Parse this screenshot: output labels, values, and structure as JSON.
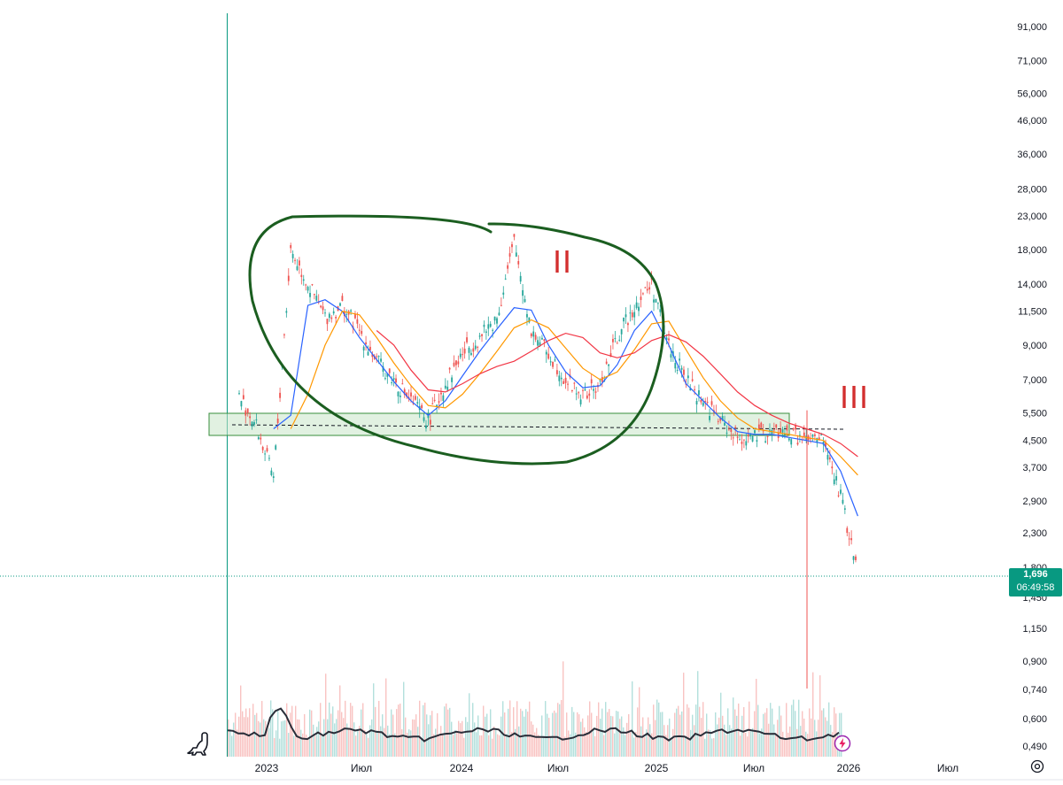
{
  "colors": {
    "up": "#26a69a",
    "down": "#ef5350",
    "ma_fast": "#2962ff",
    "ma_mid": "#ff9800",
    "ma_slow": "#f23645",
    "volume_avg": "#2a2e39",
    "zone_fill": "#c8e6c9",
    "zone_border": "#388e3c",
    "circle": "#1b5e20",
    "annotation": "#d32f2f",
    "badge": "#089981",
    "crosshair": "#089981"
  },
  "price_axis": {
    "labels": [
      "91,000",
      "71,000",
      "56,000",
      "46,000",
      "36,000",
      "28,000",
      "23,000",
      "18,000",
      "14,000",
      "11,500",
      "9,000",
      "7,000",
      "5,500",
      "4,500",
      "3,700",
      "2,900",
      "2,300",
      "1,800",
      "1,450",
      "1,150",
      "0,900",
      "0,740",
      "0,600",
      "0,490"
    ]
  },
  "time_axis": {
    "labels": [
      "2023",
      "Июл",
      "2024",
      "Июл",
      "2025",
      "Июл",
      "2026",
      "Июл"
    ]
  },
  "current_price": {
    "value": "1,696",
    "countdown": "06:49:58"
  },
  "annotations": {
    "wave_2": "II",
    "wave_3": "III"
  },
  "icons": {
    "logo": "dinosaur-logo-icon",
    "settings": "settings-icon",
    "flash": "flash-icon"
  },
  "chart_data": {
    "type": "line",
    "scale": "log",
    "x": [
      "2022-12",
      "2023-01",
      "2023-02",
      "2023-03",
      "2023-04",
      "2023-05",
      "2023-06",
      "2023-07",
      "2023-08",
      "2023-09",
      "2023-10",
      "2023-11",
      "2023-12",
      "2024-01",
      "2024-02",
      "2024-03",
      "2024-04",
      "2024-05",
      "2024-06",
      "2024-07",
      "2024-08",
      "2024-09",
      "2024-10",
      "2024-11",
      "2024-12",
      "2025-01",
      "2025-02",
      "2025-03",
      "2025-04",
      "2025-05",
      "2025-06",
      "2025-07",
      "2025-08",
      "2025-09",
      "2025-10",
      "2025-11",
      "2025-12"
    ],
    "series": [
      {
        "values": [
          6200,
          5000,
          3400,
          18000,
          14000,
          11000,
          12000,
          10000,
          8000,
          7000,
          6000,
          5200,
          6800,
          8500,
          9500,
          11000,
          19000,
          10000,
          8500,
          7000,
          6200,
          6700,
          9500,
          12000,
          14000,
          9000,
          7000,
          6000,
          5200,
          4600,
          4600,
          4800,
          4700,
          4500,
          4500,
          3000,
          1700
        ]
      },
      {
        "values": [
          null,
          null,
          4900,
          5400,
          12000,
          12500,
          11500,
          9500,
          8100,
          6900,
          6000,
          5400,
          6000,
          7200,
          8600,
          10100,
          11800,
          11600,
          9000,
          7400,
          6600,
          6700,
          7800,
          10000,
          11500,
          9000,
          6800,
          6000,
          5300,
          4800,
          4700,
          4700,
          4600,
          4500,
          4400,
          3600,
          2600
        ]
      },
      {
        "values": [
          null,
          null,
          null,
          4900,
          6300,
          9000,
          11500,
          11200,
          9500,
          7900,
          6700,
          5800,
          5700,
          6300,
          7300,
          8600,
          10200,
          10800,
          10200,
          8800,
          7600,
          7000,
          7400,
          8700,
          10500,
          10700,
          8700,
          7100,
          6000,
          5300,
          4900,
          4800,
          4700,
          4600,
          4500,
          4000,
          3500
        ]
      },
      {
        "values": [
          null,
          null,
          null,
          null,
          null,
          null,
          null,
          null,
          10000,
          9000,
          7500,
          6500,
          6400,
          6800,
          7300,
          7700,
          8000,
          8600,
          9300,
          9800,
          9500,
          8500,
          8200,
          8500,
          9300,
          9700,
          9200,
          8300,
          7300,
          6400,
          5800,
          5400,
          5100,
          4900,
          4700,
          4400,
          4000
        ]
      }
    ],
    "ylim": [
      450,
      95000
    ],
    "grid": false
  }
}
